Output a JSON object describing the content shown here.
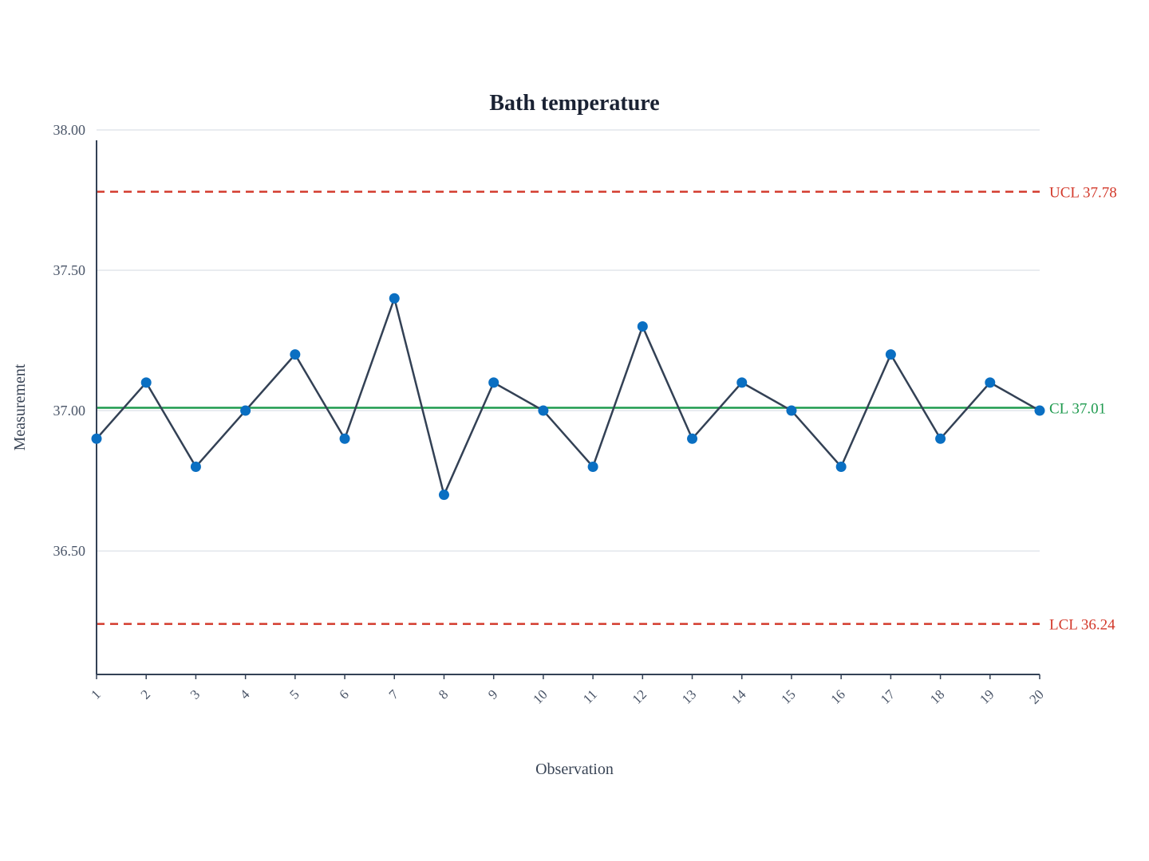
{
  "chart_data": {
    "type": "line",
    "title": "Bath temperature",
    "xlabel": "Observation",
    "ylabel": "Measurement",
    "x": [
      1,
      2,
      3,
      4,
      5,
      6,
      7,
      8,
      9,
      10,
      11,
      12,
      13,
      14,
      15,
      16,
      17,
      18,
      19,
      20
    ],
    "x_tick_labels": [
      "1",
      "2",
      "3",
      "4",
      "5",
      "6",
      "7",
      "8",
      "9",
      "10",
      "11",
      "12",
      "13",
      "14",
      "15",
      "16",
      "17",
      "18",
      "19",
      "20"
    ],
    "values": [
      36.9,
      37.1,
      36.8,
      37.0,
      37.2,
      36.9,
      37.4,
      36.7,
      37.1,
      37.0,
      36.8,
      37.3,
      36.9,
      37.1,
      37.0,
      36.8,
      37.2,
      36.9,
      37.1,
      37.0
    ],
    "ylim": [
      36.06,
      38.0
    ],
    "y_ticks": [
      36.5,
      37.0,
      37.5,
      38.0
    ],
    "y_tick_labels": [
      "36.50",
      "37.00",
      "37.50",
      "38.00"
    ],
    "grid": true,
    "control_limits": [
      {
        "label": "UCL 37.78",
        "value": 37.78,
        "style": "dashed",
        "color": "#d33a2c"
      },
      {
        "label": "CL 37.01",
        "value": 37.01,
        "style": "solid",
        "color": "#1e9a4e"
      },
      {
        "label": "LCL 36.24",
        "value": 36.24,
        "style": "dashed",
        "color": "#d33a2c"
      }
    ],
    "colors": {
      "line": "#334155",
      "marker": "#0a6fc2",
      "grid": "#e2e6ec",
      "axis": "#334155"
    }
  }
}
